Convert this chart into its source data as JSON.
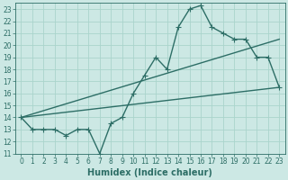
{
  "title": "",
  "xlabel": "Humidex (Indice chaleur)",
  "bg_color": "#cce8e4",
  "grid_color": "#aad4cc",
  "line_color": "#2d6e66",
  "xlim": [
    -0.5,
    23.5
  ],
  "ylim": [
    11,
    23.5
  ],
  "yticks": [
    11,
    12,
    13,
    14,
    15,
    16,
    17,
    18,
    19,
    20,
    21,
    22,
    23
  ],
  "xticks": [
    0,
    1,
    2,
    3,
    4,
    5,
    6,
    7,
    8,
    9,
    10,
    11,
    12,
    13,
    14,
    15,
    16,
    17,
    18,
    19,
    20,
    21,
    22,
    23
  ],
  "line1_x": [
    0,
    1,
    2,
    3,
    4,
    5,
    6,
    7,
    8,
    9,
    10,
    11,
    12,
    13,
    14,
    15,
    16,
    17,
    18,
    19,
    20,
    21,
    22,
    23
  ],
  "line1_y": [
    14,
    13,
    13,
    13,
    12.5,
    13,
    13,
    11,
    13.5,
    14,
    16,
    17.5,
    19,
    18,
    21.5,
    23,
    23.3,
    21.5,
    21,
    20.5,
    20.5,
    19,
    19,
    16.5
  ],
  "line2_x": [
    0,
    23
  ],
  "line2_y": [
    14,
    16.5
  ],
  "line3_x": [
    0,
    23
  ],
  "line3_y": [
    14,
    20.5
  ],
  "marker_size": 4,
  "line_width": 1.0,
  "tick_fontsize": 5.5,
  "xlabel_fontsize": 7.0
}
